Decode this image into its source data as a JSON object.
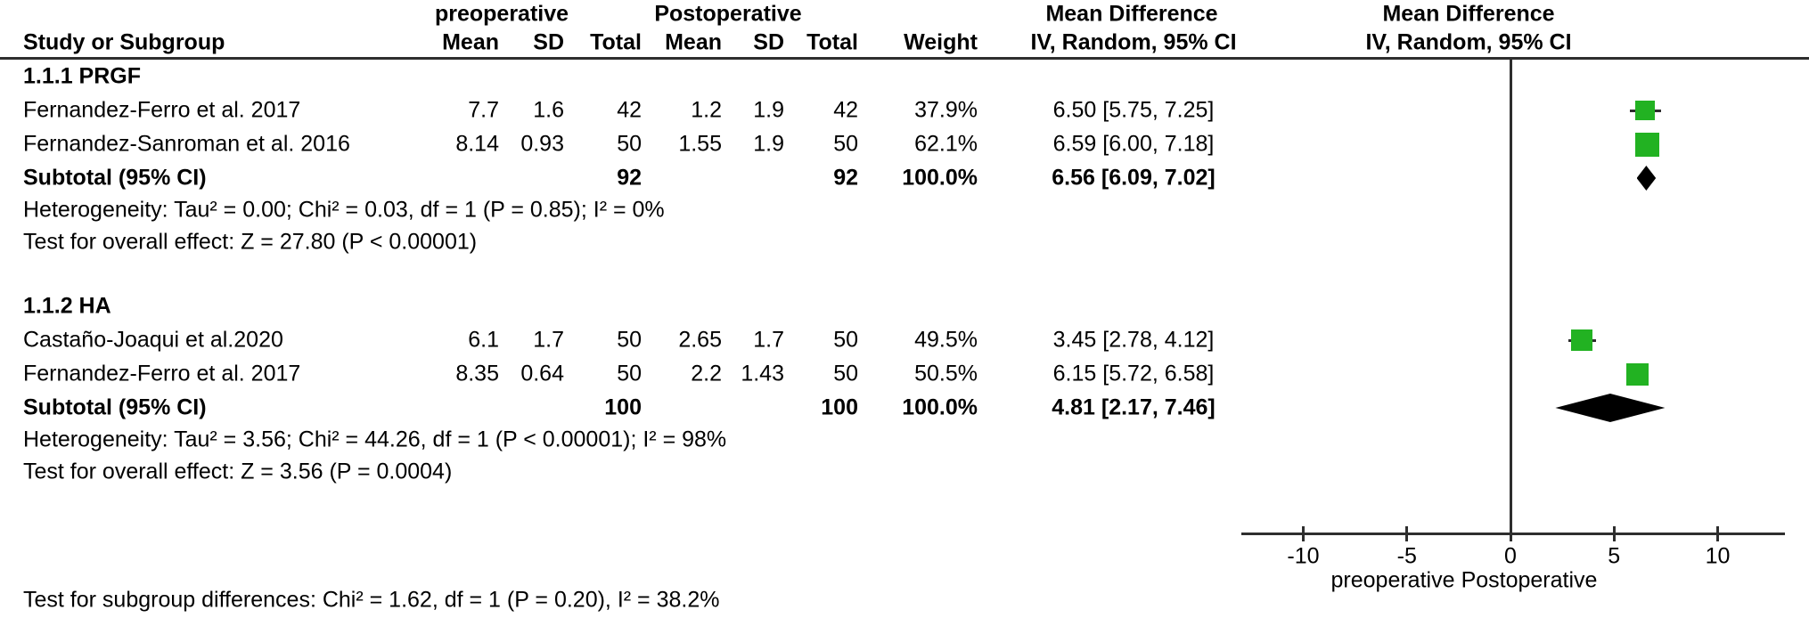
{
  "header": {
    "group_pre": "preoperative",
    "group_post": "Postoperative",
    "md_col_title": "Mean Difference",
    "md_plot_title": "Mean Difference",
    "study_col": "Study or Subgroup",
    "mean1": "Mean",
    "sd1": "SD",
    "total1": "Total",
    "mean2": "Mean",
    "sd2": "SD",
    "total2": "Total",
    "weight": "Weight",
    "iv_col": "IV, Random, 95% CI",
    "iv_plot": "IV, Random, 95% CI"
  },
  "sections": [
    {
      "label": "1.1.1 PRGF",
      "studies": [
        {
          "name": "Fernandez-Ferro et al. 2017",
          "mean1": "7.7",
          "sd1": "1.6",
          "total1": "42",
          "mean2": "1.2",
          "sd2": "1.9",
          "total2": "42",
          "weight": "37.9%",
          "weight_val": 37.9,
          "ci_text": "6.50 [5.75, 7.25]",
          "md": 6.5,
          "lo": 5.75,
          "hi": 7.25
        },
        {
          "name": "Fernandez-Sanroman et al. 2016",
          "mean1": "8.14",
          "sd1": "0.93",
          "total1": "50",
          "mean2": "1.55",
          "sd2": "1.9",
          "total2": "50",
          "weight": "62.1%",
          "weight_val": 62.1,
          "ci_text": "6.59 [6.00, 7.18]",
          "md": 6.59,
          "lo": 6.0,
          "hi": 7.18
        }
      ],
      "subtotal": {
        "label": "Subtotal (95% CI)",
        "total1": "92",
        "total2": "92",
        "weight": "100.0%",
        "ci_text": "6.56 [6.09, 7.02]",
        "md": 6.56,
        "lo": 6.09,
        "hi": 7.02
      },
      "heterogeneity": "Heterogeneity: Tau² = 0.00; Chi² = 0.03, df = 1 (P = 0.85); I² = 0%",
      "overall_effect": "Test for overall effect: Z = 27.80 (P < 0.00001)"
    },
    {
      "label": "1.1.2 HA",
      "studies": [
        {
          "name": "Castaño-Joaqui et al.2020",
          "mean1": "6.1",
          "sd1": "1.7",
          "total1": "50",
          "mean2": "2.65",
          "sd2": "1.7",
          "total2": "50",
          "weight": "49.5%",
          "weight_val": 49.5,
          "ci_text": "3.45 [2.78, 4.12]",
          "md": 3.45,
          "lo": 2.78,
          "hi": 4.12
        },
        {
          "name": "Fernandez-Ferro et al. 2017",
          "mean1": "8.35",
          "sd1": "0.64",
          "total1": "50",
          "mean2": "2.2",
          "sd2": "1.43",
          "total2": "50",
          "weight": "50.5%",
          "weight_val": 50.5,
          "ci_text": "6.15 [5.72, 6.58]",
          "md": 6.15,
          "lo": 5.72,
          "hi": 6.58
        }
      ],
      "subtotal": {
        "label": "Subtotal (95% CI)",
        "total1": "100",
        "total2": "100",
        "weight": "100.0%",
        "ci_text": "4.81 [2.17, 7.46]",
        "md": 4.81,
        "lo": 2.17,
        "hi": 7.46
      },
      "heterogeneity": "Heterogeneity: Tau² = 3.56; Chi² = 44.26, df = 1 (P < 0.00001); I² = 98%",
      "overall_effect": "Test for overall effect: Z = 3.56 (P = 0.0004)"
    }
  ],
  "footer": {
    "subgroup_test": "Test for subgroup differences: Chi² = 1.62, df = 1 (P = 0.20), I² = 38.2%"
  },
  "axis": {
    "ticks": [
      -10,
      -5,
      0,
      5,
      10
    ],
    "tick_labels": [
      "-10",
      "-5",
      "0",
      "5",
      "10"
    ],
    "label_left": "preoperative",
    "label_right": "Postoperative"
  },
  "colors": {
    "marker_green": "#22b222",
    "diamond_black": "#000000",
    "line_dark": "#2e2e2e"
  },
  "chart_data": {
    "type": "scatter",
    "subtype": "forest-plot",
    "title": "Mean Difference",
    "effect_measure": "IV, Random, 95% CI",
    "xlim": [
      -13,
      13
    ],
    "xticks": [
      -10,
      -5,
      0,
      5,
      10
    ],
    "xlabel_left": "preoperative",
    "xlabel_right": "Postoperative",
    "groups": [
      {
        "name": "1.1.1 PRGF",
        "studies": [
          {
            "study": "Fernandez-Ferro et al. 2017",
            "md": 6.5,
            "ci": [
              5.75,
              7.25
            ],
            "weight_pct": 37.9
          },
          {
            "study": "Fernandez-Sanroman et al. 2016",
            "md": 6.59,
            "ci": [
              6.0,
              7.18
            ],
            "weight_pct": 62.1
          }
        ],
        "subtotal": {
          "md": 6.56,
          "ci": [
            6.09,
            7.02
          ]
        },
        "heterogeneity": {
          "tau2": 0.0,
          "chi2": 0.03,
          "df": 1,
          "p": "0.85",
          "i2_pct": 0
        },
        "overall_effect": {
          "z": 27.8,
          "p": "< 0.00001"
        }
      },
      {
        "name": "1.1.2 HA",
        "studies": [
          {
            "study": "Castaño-Joaqui et al.2020",
            "md": 3.45,
            "ci": [
              2.78,
              4.12
            ],
            "weight_pct": 49.5
          },
          {
            "study": "Fernandez-Ferro et al. 2017",
            "md": 6.15,
            "ci": [
              5.72,
              6.58
            ],
            "weight_pct": 50.5
          }
        ],
        "subtotal": {
          "md": 4.81,
          "ci": [
            2.17,
            7.46
          ]
        },
        "heterogeneity": {
          "tau2": 3.56,
          "chi2": 44.26,
          "df": 1,
          "p": "< 0.00001",
          "i2_pct": 98
        },
        "overall_effect": {
          "z": 3.56,
          "p": "0.0004"
        }
      }
    ],
    "subgroup_difference": {
      "chi2": 1.62,
      "df": 1,
      "p": "0.20",
      "i2_pct": 38.2
    }
  }
}
